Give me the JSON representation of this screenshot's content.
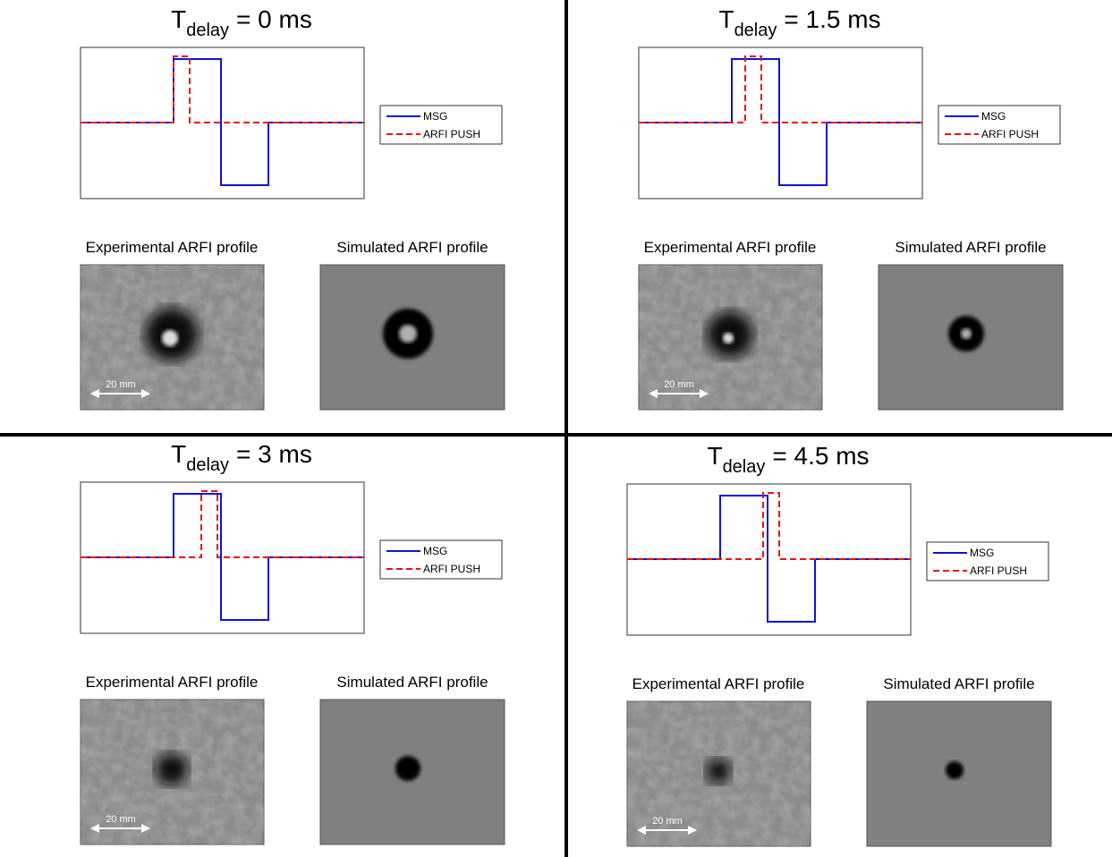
{
  "panels": [
    {
      "title": {
        "base": "T",
        "subscript": "delay",
        "rest": "= 0 ms"
      },
      "legend": [
        "MSG",
        "ARFI PUSH"
      ],
      "experimental_label": "Experimental ARFI profile",
      "simulated_label": "Simulated ARFI profile",
      "scale_bar": "20 mm"
    },
    {
      "title": {
        "base": "T",
        "subscript": "delay",
        "rest": "= 1.5 ms"
      },
      "legend": [
        "MSG",
        "ARFI PUSH"
      ],
      "experimental_label": "Experimental ARFI profile",
      "simulated_label": "Simulated ARFI profile",
      "scale_bar": "20 mm"
    },
    {
      "title": {
        "base": "T",
        "subscript": "delay",
        "rest": "= 3 ms"
      },
      "legend": [
        "MSG",
        "ARFI PUSH"
      ],
      "experimental_label": "Experimental ARFI profile",
      "simulated_label": "Simulated ARFI profile",
      "scale_bar": "20 mm"
    },
    {
      "title": {
        "base": "T",
        "subscript": "delay",
        "rest": "= 4.5 ms"
      },
      "legend": [
        "MSG",
        "ARFI PUSH"
      ],
      "experimental_label": "Experimental ARFI profile",
      "simulated_label": "Simulated ARFI profile",
      "scale_bar": "20 mm"
    }
  ]
}
